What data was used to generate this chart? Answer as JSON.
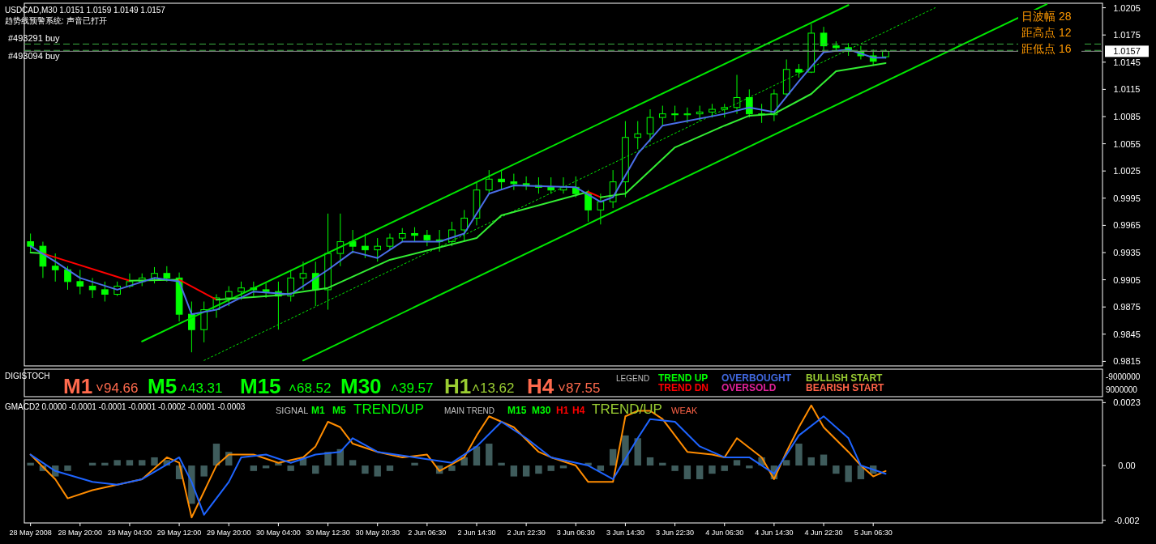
{
  "chart_data": [
    {
      "type": "candlestick",
      "title": "USDCAD,M30  1.0151 1.0159 1.0149 1.0157",
      "subtitle": "趋势线预警系统: 声音已打开",
      "color": "#00ff00",
      "categories": [
        null,
        null,
        null,
        null,
        null,
        null,
        null,
        null,
        null,
        null,
        null,
        null,
        null,
        null,
        null,
        null,
        null,
        null,
        null,
        null,
        null,
        null,
        null,
        null,
        null,
        null,
        null,
        null,
        null,
        null,
        null,
        null,
        null,
        null,
        null,
        null,
        null,
        null,
        null,
        null,
        null,
        null,
        null,
        null,
        null,
        null,
        null,
        null,
        null,
        null,
        null,
        null,
        null,
        null,
        null,
        null,
        null,
        null,
        null,
        null,
        null,
        null,
        null,
        null,
        null,
        null,
        null,
        null,
        null,
        null,
        null,
        null,
        null,
        null,
        null,
        null,
        null,
        null,
        null,
        null,
        null,
        null,
        null,
        null,
        null,
        null,
        null
      ],
      "ohlc": [
        [
          0.9947,
          0.9956,
          0.9936,
          0.9942
        ],
        [
          0.9942,
          0.9947,
          0.9907,
          0.992
        ],
        [
          0.992,
          0.9934,
          0.9903,
          0.9916
        ],
        [
          0.9916,
          0.992,
          0.9894,
          0.9903
        ],
        [
          0.9903,
          0.9916,
          0.9889,
          0.9898
        ],
        [
          0.9898,
          0.9907,
          0.9885,
          0.9894
        ],
        [
          0.9894,
          0.9903,
          0.9881,
          0.9889
        ],
        [
          0.9889,
          0.9903,
          0.9887,
          0.9898
        ],
        [
          0.9898,
          0.9912,
          0.9896,
          0.9903
        ],
        [
          0.9903,
          0.9912,
          0.9898,
          0.9907
        ],
        [
          0.9907,
          0.9919,
          0.9901,
          0.9912
        ],
        [
          0.9912,
          0.992,
          0.9903,
          0.9907
        ],
        [
          0.9907,
          0.9913,
          0.9859,
          0.9867
        ],
        [
          0.9867,
          0.9881,
          0.9825,
          0.985
        ],
        [
          0.985,
          0.9881,
          0.9836,
          0.9872
        ],
        [
          0.9872,
          0.9889,
          0.9863,
          0.9885
        ],
        [
          0.9885,
          0.9898,
          0.9876,
          0.9892
        ],
        [
          0.9892,
          0.9903,
          0.9883,
          0.9896
        ],
        [
          0.9896,
          0.9903,
          0.9887,
          0.9894
        ],
        [
          0.9894,
          0.9901,
          0.9885,
          0.9892
        ],
        [
          0.9892,
          0.9903,
          0.985,
          0.9887
        ],
        [
          0.9887,
          0.9916,
          0.9881,
          0.9907
        ],
        [
          0.9907,
          0.9925,
          0.9894,
          0.9912
        ],
        [
          0.9912,
          0.9925,
          0.9876,
          0.9894
        ],
        [
          0.9894,
          0.9978,
          0.9872,
          0.9934
        ],
        [
          0.9934,
          0.9978,
          0.992,
          0.9947
        ],
        [
          0.9947,
          0.996,
          0.9934,
          0.9942
        ],
        [
          0.9942,
          0.9956,
          0.9929,
          0.9938
        ],
        [
          0.9938,
          0.9951,
          0.9925,
          0.9942
        ],
        [
          0.9942,
          0.9956,
          0.9938,
          0.9951
        ],
        [
          0.9951,
          0.9962,
          0.9947,
          0.9956
        ],
        [
          0.9956,
          0.9963,
          0.9947,
          0.9954
        ],
        [
          0.9954,
          0.996,
          0.9942,
          0.9949
        ],
        [
          0.9949,
          0.996,
          0.9936,
          0.9947
        ],
        [
          0.9947,
          0.9969,
          0.9942,
          0.996
        ],
        [
          0.996,
          0.9982,
          0.9947,
          0.9973
        ],
        [
          0.9973,
          1.0013,
          0.9965,
          1.0004
        ],
        [
          1.0004,
          1.0026,
          1.0,
          1.0016
        ],
        [
          1.0016,
          1.0025,
          1.0004,
          1.0013
        ],
        [
          1.0013,
          1.0022,
          1.0004,
          1.0011
        ],
        [
          1.0011,
          1.0019,
          1.0004,
          1.0009
        ],
        [
          1.0009,
          1.0018,
          1.0,
          1.0007
        ],
        [
          1.0007,
          1.0018,
          1.0,
          1.0004
        ],
        [
          1.0004,
          1.0018,
          1.0,
          1.0007
        ],
        [
          1.0007,
          1.0019,
          0.9996,
          1.0
        ],
        [
          1.0,
          1.0004,
          0.9969,
          0.9982
        ],
        [
          0.9982,
          1.0,
          0.9966,
          0.9991
        ],
        [
          0.9991,
          1.0026,
          0.9984,
          1.0013
        ],
        [
          1.0013,
          1.008,
          0.9996,
          1.0062
        ],
        [
          1.0062,
          1.008,
          1.0049,
          1.0066
        ],
        [
          1.0066,
          1.0093,
          1.0057,
          1.0084
        ],
        [
          1.0084,
          1.0097,
          1.0075,
          1.0088
        ],
        [
          1.0088,
          1.0097,
          1.008,
          1.0087
        ],
        [
          1.0087,
          1.0095,
          1.0078,
          1.0088
        ],
        [
          1.0088,
          1.0097,
          1.008,
          1.009
        ],
        [
          1.009,
          1.0099,
          1.0084,
          1.0093
        ],
        [
          1.0093,
          1.0099,
          1.0084,
          1.0095
        ],
        [
          1.0095,
          1.0131,
          1.0088,
          1.0106
        ],
        [
          1.0106,
          1.0115,
          1.0084,
          1.0088
        ],
        [
          1.0088,
          1.0099,
          1.0078,
          1.0087
        ],
        [
          1.0087,
          1.0115,
          1.008,
          1.011
        ],
        [
          1.011,
          1.0148,
          1.0106,
          1.0137
        ],
        [
          1.0137,
          1.0143,
          1.0128,
          1.0134
        ],
        [
          1.0134,
          1.0187,
          1.0133,
          1.0177
        ],
        [
          1.0177,
          1.0184,
          1.0157,
          1.0163
        ],
        [
          1.0163,
          1.0168,
          1.0157,
          1.0161
        ],
        [
          1.0161,
          1.0166,
          1.0152,
          1.0157
        ],
        [
          1.0157,
          1.0163,
          1.0148,
          1.0152
        ],
        [
          1.0152,
          1.0159,
          1.0141,
          1.0146
        ],
        [
          1.0151,
          1.0159,
          1.0149,
          1.0157
        ],
        null,
        null,
        null,
        null,
        null,
        null,
        null,
        null,
        null,
        null,
        null,
        null,
        null,
        null,
        null,
        null,
        null
      ],
      "series": [
        {
          "type": "line",
          "color": "#00e600",
          "values": [
            null,
            null,
            null,
            null,
            null,
            null,
            null,
            null,
            null,
            0.9837,
            null,
            null,
            null,
            null,
            null,
            null,
            null,
            null,
            null,
            null,
            null,
            null,
            null,
            null,
            null,
            null,
            null,
            null,
            null,
            null,
            null,
            null,
            null,
            null,
            null,
            null,
            null,
            null,
            null,
            null,
            null,
            null,
            null,
            null,
            null,
            null,
            null,
            null,
            null,
            null,
            null,
            null,
            null,
            null,
            null,
            null,
            null,
            null,
            null,
            null,
            null,
            null,
            null,
            null,
            null,
            null,
            1.0208,
            null,
            null,
            null,
            null,
            null,
            null,
            null,
            null,
            null,
            null,
            null,
            null,
            null,
            null,
            null,
            null,
            null,
            null,
            null,
            null
          ]
        },
        {
          "type": "line",
          "color": "#00e600",
          "line_style": "dotted",
          "values": [
            null,
            null,
            null,
            null,
            null,
            null,
            null,
            null,
            null,
            null,
            null,
            null,
            null,
            null,
            0.9816,
            null,
            null,
            null,
            null,
            null,
            null,
            null,
            null,
            null,
            null,
            null,
            null,
            null,
            null,
            null,
            null,
            null,
            null,
            null,
            null,
            null,
            null,
            null,
            null,
            null,
            null,
            null,
            null,
            null,
            null,
            null,
            null,
            null,
            null,
            null,
            null,
            null,
            null,
            null,
            null,
            null,
            null,
            null,
            null,
            null,
            null,
            null,
            null,
            null,
            null,
            null,
            null,
            null,
            null,
            null,
            null,
            null,
            null,
            1.0205,
            null,
            null,
            null,
            null,
            null,
            null,
            null,
            null,
            null,
            null,
            null,
            null,
            null
          ]
        },
        {
          "type": "line",
          "color": "#00e600",
          "values": [
            null,
            null,
            null,
            null,
            null,
            null,
            null,
            null,
            null,
            null,
            null,
            null,
            null,
            null,
            null,
            null,
            null,
            null,
            null,
            null,
            null,
            null,
            0.9816,
            null,
            null,
            null,
            null,
            null,
            null,
            null,
            null,
            null,
            null,
            null,
            null,
            null,
            null,
            null,
            null,
            null,
            null,
            null,
            null,
            null,
            null,
            null,
            null,
            null,
            null,
            null,
            null,
            null,
            null,
            null,
            null,
            null,
            null,
            null,
            null,
            null,
            null,
            null,
            null,
            null,
            null,
            null,
            null,
            null,
            null,
            null,
            null,
            null,
            null,
            null,
            null,
            null,
            null,
            null,
            null,
            null,
            null,
            null,
            1.0209,
            null,
            null,
            null,
            null
          ]
        },
        {
          "type": "line",
          "color": "#33ee33",
          "values": [
            0.9935,
            0.9934,
            null,
            null,
            null,
            null,
            null,
            null,
            null,
            null,
            null,
            null,
            null,
            null,
            null,
            null,
            null,
            null,
            null,
            null,
            null,
            null,
            null,
            null,
            null,
            null,
            null,
            null,
            null,
            null,
            null,
            null,
            null,
            null,
            null,
            null,
            null,
            null,
            null,
            null,
            null,
            null,
            null,
            null,
            null,
            null,
            null,
            null,
            null,
            null,
            null,
            null,
            null,
            null,
            null,
            null,
            null,
            null,
            null,
            null,
            null,
            null,
            null,
            null,
            null,
            null,
            null,
            null,
            null,
            null,
            null,
            null,
            null,
            null,
            null,
            null,
            null,
            null,
            null,
            null,
            null,
            null,
            null,
            null,
            null,
            null,
            null
          ]
        },
        {
          "type": "line",
          "color": "#ff0000",
          "values": [
            null,
            0.9934,
            null,
            null,
            null,
            null,
            null,
            null,
            0.9904,
            null,
            null,
            null,
            null,
            null,
            null,
            null,
            null,
            null,
            null,
            null,
            null,
            null,
            null,
            null,
            null,
            null,
            null,
            null,
            null,
            null,
            null,
            null,
            null,
            null,
            null,
            null,
            null,
            null,
            null,
            null,
            null,
            null,
            null,
            null,
            null,
            null,
            null,
            null,
            null,
            null,
            null,
            null,
            null,
            null,
            null,
            null,
            null,
            null,
            null,
            null,
            null,
            null,
            null,
            null,
            null,
            null,
            null,
            null,
            null,
            null,
            null,
            null,
            null,
            null,
            null,
            null,
            null,
            null,
            null,
            null,
            null,
            null,
            null,
            null,
            null,
            null,
            null
          ]
        },
        {
          "type": "line",
          "color": "#33ee33",
          "values": [
            null,
            null,
            null,
            null,
            null,
            null,
            null,
            null,
            0.9904,
            null,
            null,
            null,
            0.9905,
            null,
            null,
            null,
            null,
            null,
            null,
            null,
            null,
            null,
            null,
            null,
            null,
            null,
            null,
            null,
            null,
            null,
            null,
            null,
            null,
            null,
            null,
            null,
            null,
            null,
            null,
            null,
            null,
            null,
            null,
            null,
            null,
            null,
            null,
            null,
            null,
            null,
            null,
            null,
            null,
            null,
            null,
            null,
            null,
            null,
            null,
            null,
            null,
            null,
            null,
            null,
            null,
            null,
            null,
            null,
            null,
            null,
            null,
            null,
            null,
            null,
            null,
            null,
            null,
            null,
            null,
            null,
            null,
            null,
            null,
            null,
            null,
            null,
            null
          ]
        },
        {
          "type": "line",
          "color": "#ff0000",
          "values": [
            null,
            null,
            null,
            null,
            null,
            null,
            null,
            null,
            null,
            null,
            null,
            null,
            0.9905,
            null,
            null,
            0.9883,
            null,
            null,
            null,
            null,
            null,
            null,
            null,
            null,
            null,
            null,
            null,
            null,
            null,
            null,
            null,
            null,
            null,
            null,
            null,
            null,
            null,
            null,
            null,
            null,
            null,
            null,
            null,
            null,
            null,
            null,
            null,
            null,
            null,
            null,
            null,
            null,
            null,
            null,
            null,
            null,
            null,
            null,
            null,
            null,
            null,
            null,
            null,
            null,
            null,
            null,
            null,
            null,
            null,
            null,
            null,
            null,
            null,
            null,
            null,
            null,
            null,
            null,
            null,
            null,
            null,
            null,
            null,
            null,
            null,
            null,
            null
          ]
        },
        {
          "type": "line",
          "color": "#33ee33",
          "values": [
            null,
            null,
            null,
            null,
            null,
            null,
            null,
            null,
            null,
            null,
            null,
            null,
            null,
            null,
            null,
            0.9883,
            null,
            null,
            null,
            null,
            0.9888,
            null,
            null,
            null,
            0.9896,
            null,
            null,
            null,
            null,
            0.9927,
            null,
            null,
            null,
            null,
            null,
            null,
            0.9951,
            null,
            0.9976,
            null,
            null,
            null,
            null,
            null,
            null,
            1.0002,
            null,
            null,
            null,
            null,
            null,
            null,
            null,
            null,
            null,
            null,
            null,
            null,
            null,
            null,
            null,
            null,
            null,
            null,
            null,
            null,
            null,
            null,
            null,
            null,
            null,
            null,
            null,
            null,
            null,
            null,
            null,
            null,
            null,
            null,
            null,
            null,
            null,
            null,
            null,
            null,
            null
          ]
        },
        {
          "type": "line",
          "color": "#ff0000",
          "values": [
            null,
            null,
            null,
            null,
            null,
            null,
            null,
            null,
            null,
            null,
            null,
            null,
            null,
            null,
            null,
            null,
            null,
            null,
            null,
            null,
            null,
            null,
            null,
            null,
            null,
            null,
            null,
            null,
            null,
            null,
            null,
            null,
            null,
            null,
            null,
            null,
            null,
            null,
            null,
            null,
            null,
            null,
            null,
            null,
            null,
            1.0002,
            0.9996,
            null,
            null,
            null,
            null,
            null,
            null,
            null,
            null,
            null,
            null,
            null,
            null,
            null,
            null,
            null,
            null,
            null,
            null,
            null,
            null,
            null,
            null,
            null,
            null,
            null,
            null,
            null,
            null,
            null,
            null,
            null,
            null,
            null,
            null,
            null,
            null,
            null,
            null,
            null,
            null
          ]
        },
        {
          "type": "line",
          "color": "#33ee33",
          "values": [
            null,
            null,
            null,
            null,
            null,
            null,
            null,
            null,
            null,
            null,
            null,
            null,
            null,
            null,
            null,
            null,
            null,
            null,
            null,
            null,
            null,
            null,
            null,
            null,
            null,
            null,
            null,
            null,
            null,
            null,
            null,
            null,
            null,
            null,
            null,
            null,
            null,
            null,
            null,
            null,
            null,
            null,
            null,
            null,
            null,
            null,
            0.9996,
            null,
            1.0,
            null,
            null,
            null,
            1.0051,
            null,
            null,
            null,
            1.0075,
            null,
            1.0086,
            null,
            1.0088,
            null,
            null,
            1.011,
            null,
            1.0135,
            null,
            null,
            null,
            1.0144,
            null,
            null,
            null,
            null,
            null,
            null,
            null,
            null,
            null,
            null,
            null,
            null,
            null,
            null,
            null,
            null,
            null
          ]
        },
        {
          "type": "line",
          "color": "#4a6ee8",
          "values": [
            0.9942,
            null,
            0.9925,
            null,
            0.9907,
            null,
            null,
            0.9894,
            null,
            null,
            0.9907,
            null,
            0.9903,
            0.9867,
            null,
            0.9872,
            null,
            null,
            0.9892,
            null,
            null,
            0.9889,
            null,
            null,
            0.9916,
            null,
            0.9936,
            null,
            0.9929,
            null,
            0.9947,
            null,
            null,
            0.9947,
            null,
            0.9956,
            null,
            1.0,
            null,
            1.0009,
            null,
            null,
            null,
            null,
            1.0007,
            null,
            0.9991,
            0.9996,
            null,
            1.0044,
            null,
            1.0075,
            null,
            null,
            null,
            null,
            1.0088,
            null,
            1.0095,
            null,
            1.009,
            null,
            1.0124,
            null,
            1.0156,
            null,
            1.0159,
            null,
            1.015,
            1.015,
            null,
            null,
            null,
            null,
            null,
            null,
            null,
            null,
            null,
            null,
            null,
            null,
            null,
            null,
            null,
            null,
            null
          ]
        }
      ],
      "ylim": [
        0.981,
        1.021
      ],
      "yticks": [
        0.9815,
        0.9845,
        0.9875,
        0.9905,
        0.9935,
        0.9965,
        0.9995,
        1.0025,
        1.0055,
        1.0085,
        1.0115,
        1.0145,
        1.0175,
        1.0205
      ],
      "tick_labels": "y",
      "ref_lines": [
        {
          "axis": "y",
          "value": 1.0165,
          "label": "#493291 buy",
          "color": "#3cb043",
          "line_style": "dashed"
        },
        {
          "axis": "y",
          "value": 1.0158,
          "label": "#493094 buy",
          "color": "#3cb043",
          "line_style": "dashed"
        },
        {
          "axis": "y",
          "value": 1.0157,
          "label": "1.0157",
          "color": "#8c8c8c"
        }
      ],
      "annotations": [
        "日波幅 28",
        "距高点 12",
        "距低点 16"
      ]
    },
    {
      "type": "other",
      "title": "DIGISTOCH",
      "annotations": [
        "M1",
        "˅94.66",
        "M5",
        "˄43.31",
        "M15",
        "˄68.52",
        "M30",
        "˄39.57",
        "H1",
        "˄13.62",
        "H4",
        "˅87.55",
        "LEGEND",
        "TREND UP",
        "TREND DN",
        "OVERBOUGHT",
        "OVERSOLD",
        "BULLISH START",
        "BEARISH START",
        "-9000000",
        "9000000"
      ]
    },
    {
      "type": "bar",
      "title": "GMACD2 0.0000 -0.0001 -0.0001 -0.0001 -0.0002 -0.0001 -0.0003",
      "color": "#3f5c5c",
      "categories": [
        "28 May 2008",
        null,
        null,
        null,
        "28 May 20:00",
        null,
        null,
        null,
        "29 May 04:00",
        null,
        null,
        null,
        "29 May 12:00",
        null,
        null,
        null,
        "29 May 20:00",
        null,
        null,
        null,
        "30 May 04:00",
        null,
        null,
        null,
        "30 May 12:30",
        null,
        null,
        null,
        "30 May 20:30",
        null,
        null,
        null,
        "2 Jun 06:30",
        null,
        null,
        null,
        "2 Jun 14:30",
        null,
        null,
        null,
        "2 Jun 22:30",
        null,
        null,
        null,
        "3 Jun 06:30",
        null,
        null,
        null,
        "3 Jun 14:30",
        null,
        null,
        null,
        "3 Jun 22:30",
        null,
        null,
        null,
        "4 Jun 06:30",
        null,
        null,
        null,
        "4 Jun 14:30",
        null,
        null,
        null,
        "4 Jun 22:30",
        null,
        null,
        null,
        "5 Jun 06:30",
        null,
        null,
        null,
        null,
        null,
        null,
        null,
        null,
        null,
        null,
        null,
        null,
        null,
        null,
        null,
        null,
        null,
        null
      ],
      "values": [
        0.0001,
        -0.0002,
        -0.0004,
        -0.0002,
        0.0,
        0.0001,
        0.0001,
        0.0002,
        0.0002,
        0.0002,
        0.0003,
        0.0002,
        -0.0005,
        -0.0014,
        -0.0004,
        0.0008,
        0.0005,
        0.0,
        -0.0002,
        -0.0001,
        0.0001,
        -0.0002,
        0.0003,
        -0.0003,
        0.0005,
        0.0006,
        0.0002,
        -0.0003,
        -0.0004,
        -0.0002,
        0.0,
        0.0001,
        0.0,
        -0.0003,
        -0.0002,
        0.0003,
        0.0007,
        0.0008,
        0.0001,
        -0.0004,
        -0.0004,
        -0.0003,
        -0.0002,
        -0.0001,
        0.0,
        0.0001,
        -0.0002,
        0.0006,
        0.0011,
        0.001,
        0.0003,
        0.0001,
        -0.0002,
        -0.0005,
        -0.0005,
        -0.0003,
        -0.0002,
        0.0002,
        -0.0001,
        0.0003,
        -0.0005,
        0.0002,
        0.0008,
        0.0003,
        0.0004,
        -0.0003,
        -0.0006,
        -0.0005,
        -0.0003,
        0.0,
        null,
        null,
        null,
        null,
        null,
        null,
        null,
        null,
        null,
        null,
        null,
        null,
        null,
        null,
        null,
        null,
        null
      ],
      "series": [
        {
          "type": "line",
          "color": "#ff8c00",
          "values": [
            0.0004,
            null,
            -0.0005,
            -0.0012,
            null,
            -0.0009,
            null,
            -0.0007,
            null,
            -0.0005,
            null,
            0.0003,
            0.0001,
            -0.0019,
            null,
            0.0,
            0.0004,
            null,
            0.0004,
            null,
            0.0001,
            null,
            0.0003,
            0.0007,
            0.0016,
            0.0014,
            0.0008,
            null,
            0.0005,
            null,
            0.0003,
            null,
            0.0004,
            -0.0002,
            null,
            0.0003,
            0.0011,
            0.0018,
            null,
            0.0014,
            null,
            0.0005,
            0.0003,
            null,
            0.0,
            -0.0006,
            null,
            -0.0006,
            0.0018,
            0.002,
            0.002,
            0.0017,
            null,
            0.0005,
            null,
            0.0004,
            0.0003,
            0.001,
            null,
            0.0003,
            -0.0005,
            0.0005,
            0.0014,
            0.0022,
            0.0014,
            null,
            0.0005,
            0.0,
            -0.0004,
            -0.0002,
            null,
            null,
            null,
            null,
            null,
            null,
            null,
            null,
            null,
            null,
            null,
            null,
            null,
            null,
            null,
            null,
            null
          ]
        },
        {
          "type": "line",
          "color": "#1e64ff",
          "values": [
            0.0004,
            null,
            -0.0002,
            null,
            null,
            -0.0006,
            null,
            -0.0007,
            null,
            -0.0005,
            null,
            null,
            0.0003,
            -0.0006,
            -0.0018,
            null,
            -0.0006,
            0.0003,
            null,
            0.0004,
            null,
            0.0001,
            null,
            0.0004,
            null,
            0.0005,
            0.001,
            null,
            0.0005,
            null,
            null,
            0.0003,
            null,
            null,
            0.0001,
            null,
            0.0007,
            null,
            0.0016,
            null,
            0.001,
            null,
            0.0003,
            null,
            null,
            0.0,
            null,
            -0.0005,
            null,
            0.001,
            0.0017,
            null,
            0.0016,
            null,
            0.0007,
            null,
            0.0003,
            null,
            0.0003,
            null,
            -0.0003,
            null,
            0.0011,
            null,
            0.0018,
            null,
            0.001,
            0.0,
            null,
            -0.0003,
            null,
            null,
            null,
            null,
            null,
            null,
            null,
            null,
            null,
            null,
            null,
            null,
            null,
            null,
            null,
            null,
            null
          ]
        }
      ],
      "ylim": [
        -0.0021,
        0.0024
      ],
      "yticks": [
        0.0023,
        {
          "value": 0,
          "label": "0.00"
        },
        {
          "value": -0.002,
          "label": "-0.002"
        }
      ],
      "annotations": [
        "SIGNAL",
        "M1",
        "M5",
        "TREND/UP",
        "MAIN TREND",
        "M15",
        "M30",
        "H1",
        "H4",
        "TREND/UP",
        "WEAK"
      ]
    }
  ]
}
